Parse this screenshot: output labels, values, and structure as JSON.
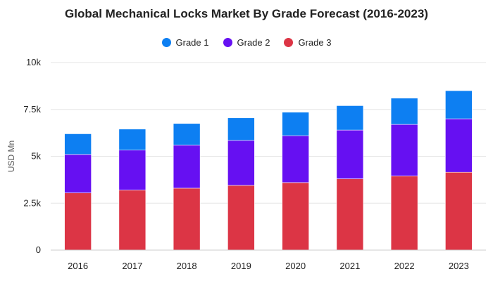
{
  "chart_data": {
    "type": "bar",
    "stacked": true,
    "title": "Global Mechanical Locks Market By Grade Forecast (2016-2023)",
    "xlabel": "",
    "ylabel": "USD Mn",
    "ylim": [
      0,
      10000
    ],
    "yticks": [
      0,
      2500,
      5000,
      7500,
      10000
    ],
    "ytick_labels": [
      "0",
      "2.5k",
      "5k",
      "7.5k",
      "10k"
    ],
    "grid": true,
    "legend_position": "top-center",
    "categories": [
      "2016",
      "2017",
      "2018",
      "2019",
      "2020",
      "2021",
      "2022",
      "2023"
    ],
    "series": [
      {
        "name": "Grade 3",
        "color": "#dc3545",
        "values": [
          3050,
          3200,
          3300,
          3450,
          3600,
          3800,
          3950,
          4150
        ]
      },
      {
        "name": "Grade 2",
        "color": "#6610f2",
        "values": [
          2050,
          2130,
          2300,
          2400,
          2500,
          2600,
          2750,
          2850
        ]
      },
      {
        "name": "Grade 1",
        "color": "#0d7ff2",
        "values": [
          1100,
          1120,
          1150,
          1200,
          1250,
          1300,
          1400,
          1500
        ]
      }
    ],
    "legend_order": [
      "Grade 1",
      "Grade 2",
      "Grade 3"
    ]
  }
}
